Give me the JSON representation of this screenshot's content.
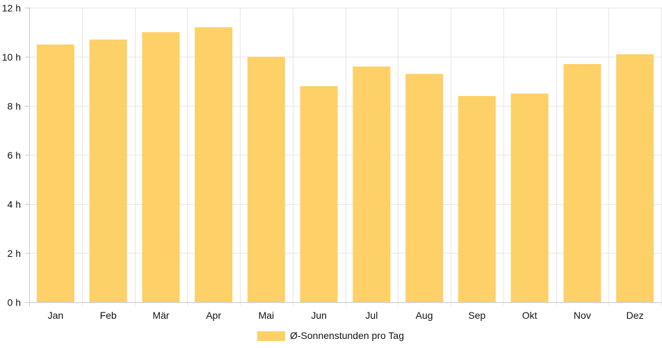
{
  "chart_data": {
    "type": "bar",
    "categories": [
      "Jan",
      "Feb",
      "Mär",
      "Apr",
      "Mai",
      "Jun",
      "Jul",
      "Aug",
      "Sep",
      "Okt",
      "Nov",
      "Dez"
    ],
    "series": [
      {
        "name": "Ø-Sonnenstunden pro Tag",
        "values": [
          10.5,
          10.7,
          11.0,
          11.2,
          10.0,
          8.8,
          9.6,
          9.3,
          8.4,
          8.5,
          9.7,
          10.1
        ]
      }
    ],
    "y_unit": "h",
    "ylim": [
      0,
      12
    ],
    "y_ticks": [
      "0 h",
      "2 h",
      "4 h",
      "6 h",
      "8 h",
      "10 h",
      "12 h"
    ],
    "grid": true,
    "legend_position": "bottom",
    "colors": {
      "bar": "#fdd068",
      "grid": "#e6e6e6",
      "axis": "#c8c8c8"
    }
  }
}
